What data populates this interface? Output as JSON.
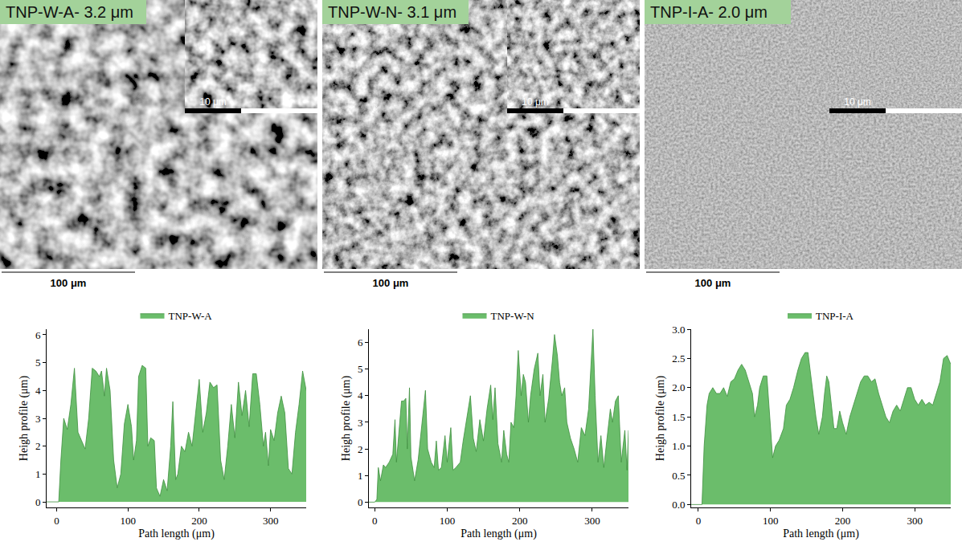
{
  "images": [
    {
      "title": "TNP-W-A- 3.2 μm",
      "scale_bar": "100 μm",
      "inset_scale_bar": "10 μm"
    },
    {
      "title": "TNP-W-N- 3.1 μm",
      "scale_bar": "100 μm",
      "inset_scale_bar": "10 μm"
    },
    {
      "title": "TNP-I-A- 2.0 μm",
      "scale_bar": "100 μm",
      "inset_scale_bar": "10 μm"
    }
  ],
  "chart_data": [
    {
      "type": "area",
      "x_label": "Path length (μm)",
      "y_label": "Heigh profile (μm)",
      "legend": "top",
      "grid": false,
      "xlim": [
        -14,
        350
      ],
      "xticks": [
        0,
        100,
        200,
        300
      ],
      "ylim": [
        -0.2,
        6.2
      ],
      "yticks": [
        0,
        1,
        2,
        3,
        4,
        5,
        6
      ],
      "x": [
        -14,
        0,
        3,
        6,
        10,
        15,
        20,
        25,
        30,
        35,
        40,
        45,
        50,
        55,
        60,
        63,
        67,
        70,
        75,
        80,
        85,
        90,
        95,
        100,
        105,
        108,
        112,
        115,
        120,
        125,
        128,
        132,
        137,
        140,
        145,
        150,
        155,
        160,
        163,
        167,
        170,
        175,
        180,
        185,
        190,
        195,
        200,
        205,
        210,
        215,
        220,
        225,
        230,
        235,
        240,
        245,
        250,
        255,
        260,
        265,
        270,
        275,
        280,
        285,
        290,
        293,
        297,
        300,
        305,
        310,
        315,
        320,
        325,
        330,
        335,
        340,
        345,
        350
      ],
      "series": [
        {
          "name": "TNP-W-A",
          "color": "#6bbd6b",
          "values": [
            0,
            0,
            0,
            1.5,
            3.0,
            2.6,
            3.5,
            4.8,
            2.5,
            2.2,
            1.9,
            3.0,
            4.8,
            4.7,
            4.5,
            4.7,
            3.8,
            4.8,
            4.0,
            1.5,
            0.5,
            1.0,
            2.8,
            3.5,
            2.7,
            1.5,
            2.2,
            4.5,
            4.9,
            4.8,
            2.0,
            2.3,
            2.2,
            0.5,
            0.2,
            0.8,
            0.4,
            2.0,
            3.6,
            0.8,
            1.0,
            2.0,
            1.8,
            2.5,
            2.0,
            3.2,
            4.4,
            2.5,
            3.2,
            4.3,
            4.1,
            4.2,
            1.5,
            0.8,
            2.0,
            3.5,
            2.3,
            4.3,
            3.1,
            4.0,
            2.7,
            4.6,
            4.6,
            3.5,
            2.0,
            2.5,
            1.3,
            2.6,
            2.2,
            3.2,
            3.8,
            3.2,
            1.2,
            1.0,
            2.5,
            3.5,
            4.7,
            4.0
          ]
        }
      ]
    },
    {
      "type": "area",
      "x_label": "Path length (μm)",
      "y_label": "Heigh profile (μm)",
      "legend": "top",
      "grid": false,
      "xlim": [
        -8,
        350
      ],
      "xticks": [
        0,
        100,
        200,
        300
      ],
      "ylim": [
        -0.2,
        6.5
      ],
      "yticks": [
        0,
        1,
        2,
        3,
        4,
        5,
        6
      ],
      "x": [
        -8,
        0,
        3,
        5,
        8,
        12,
        15,
        20,
        25,
        28,
        30,
        33,
        37,
        40,
        43,
        45,
        48,
        50,
        55,
        60,
        65,
        70,
        73,
        78,
        82,
        85,
        88,
        92,
        97,
        100,
        105,
        108,
        112,
        118,
        122,
        128,
        132,
        136,
        140,
        145,
        150,
        155,
        160,
        163,
        166,
        170,
        175,
        178,
        182,
        185,
        188,
        192,
        195,
        198,
        202,
        205,
        208,
        212,
        215,
        220,
        225,
        228,
        232,
        235,
        240,
        245,
        248,
        252,
        255,
        258,
        262,
        265,
        270,
        275,
        280,
        285,
        290,
        295,
        298,
        301,
        304,
        308,
        312,
        316,
        320,
        325,
        328,
        332,
        336,
        340,
        345,
        348,
        350
      ],
      "series": [
        {
          "name": "TNP-W-N",
          "color": "#6bbd6b",
          "values": [
            0,
            0,
            0.1,
            1.3,
            0.8,
            1.4,
            1.3,
            1.5,
            1.8,
            3.1,
            1.5,
            2.5,
            3.8,
            3.8,
            3.9,
            2.0,
            4.3,
            1.7,
            0.8,
            1.6,
            3.0,
            4.2,
            2.0,
            1.5,
            1.3,
            2.3,
            1.2,
            1.3,
            2.5,
            1.5,
            2.8,
            1.2,
            1.3,
            1.5,
            2.3,
            3.3,
            4.0,
            2.4,
            1.9,
            3.1,
            2.3,
            3.5,
            4.4,
            3.1,
            4.3,
            2.2,
            1.5,
            2.7,
            1.8,
            1.5,
            3.0,
            2.8,
            4.0,
            5.7,
            4.0,
            4.8,
            4.5,
            3.0,
            4.0,
            5.0,
            5.6,
            4.0,
            4.8,
            3.0,
            3.9,
            5.3,
            6.3,
            5.5,
            4.5,
            4.0,
            4.3,
            3.0,
            2.4,
            2.0,
            1.5,
            2.8,
            2.5,
            3.5,
            5.0,
            6.5,
            4.0,
            1.5,
            2.5,
            1.3,
            2.3,
            3.5,
            3.0,
            3.8,
            4.0,
            1.5,
            2.7,
            1.2,
            2.7
          ]
        }
      ]
    },
    {
      "type": "area",
      "x_label": "Path length (μm)",
      "y_label": "Heigh profile (μm)",
      "legend": "top",
      "grid": false,
      "xlim": [
        -10,
        350
      ],
      "xticks": [
        0,
        100,
        200,
        300
      ],
      "ylim": [
        -0.05,
        3.0
      ],
      "yticks": [
        {
          "value": 0,
          "label": "0.0"
        },
        0.5,
        {
          "value": 1,
          "label": "1.0"
        },
        1.5,
        {
          "value": 2,
          "label": "2.0"
        },
        2.5,
        {
          "value": 3,
          "label": "3.0"
        }
      ],
      "x": [
        -10,
        0,
        5,
        8,
        12,
        15,
        20,
        25,
        30,
        35,
        40,
        45,
        50,
        55,
        60,
        65,
        70,
        75,
        78,
        82,
        85,
        90,
        95,
        100,
        103,
        107,
        112,
        118,
        122,
        127,
        132,
        138,
        143,
        148,
        152,
        155,
        160,
        163,
        167,
        172,
        175,
        178,
        181,
        185,
        188,
        192,
        196,
        200,
        205,
        210,
        215,
        220,
        225,
        230,
        235,
        240,
        245,
        250,
        255,
        260,
        265,
        270,
        275,
        280,
        285,
        290,
        295,
        300,
        305,
        310,
        315,
        320,
        325,
        330,
        335,
        340,
        345,
        350
      ],
      "series": [
        {
          "name": "TNP-I-A",
          "color": "#6bbd6b",
          "values": [
            0,
            0,
            0.0,
            1.0,
            1.7,
            1.9,
            2.0,
            1.9,
            1.9,
            2.0,
            1.85,
            2.1,
            2.15,
            2.3,
            2.4,
            2.3,
            2.1,
            1.9,
            1.5,
            1.7,
            2.0,
            2.2,
            2.2,
            1.4,
            0.8,
            1.0,
            1.1,
            1.3,
            1.7,
            1.8,
            2.0,
            2.3,
            2.5,
            2.6,
            2.6,
            2.3,
            1.8,
            1.5,
            1.2,
            1.5,
            1.9,
            2.2,
            2.1,
            1.6,
            1.3,
            1.3,
            1.6,
            1.4,
            1.2,
            1.5,
            1.7,
            1.9,
            2.1,
            2.2,
            2.2,
            2.1,
            2.15,
            1.9,
            1.7,
            1.5,
            1.4,
            1.6,
            1.7,
            1.6,
            1.8,
            2.0,
            2.0,
            1.8,
            1.7,
            1.8,
            1.7,
            1.75,
            1.7,
            1.9,
            2.1,
            2.5,
            2.55,
            2.4
          ]
        }
      ]
    }
  ]
}
